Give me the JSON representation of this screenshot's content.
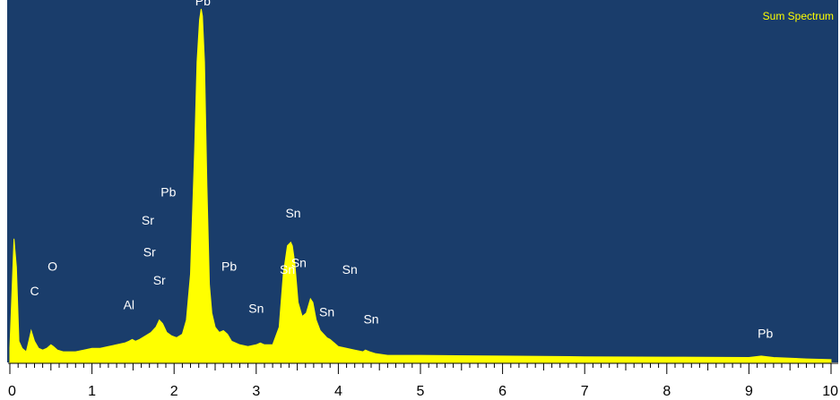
{
  "chart_data": {
    "type": "area",
    "title": "Sum Spectrum",
    "xlabel": "",
    "ylabel": "",
    "xlim": [
      0,
      10
    ],
    "ylim": [
      0,
      1
    ],
    "x_ticks": [
      "0",
      "1",
      "2",
      "3",
      "4",
      "5",
      "6",
      "7",
      "8",
      "9",
      "10"
    ],
    "grid": false,
    "colors": {
      "background": "#1a3d6b",
      "spectrum": "#ffff00",
      "peak_label": "#ffffff",
      "title": "#ffff00",
      "axis": "#000000"
    },
    "series": [
      {
        "x": [
          0.0,
          0.05,
          0.08,
          0.11,
          0.15,
          0.2,
          0.22,
          0.26,
          0.3,
          0.35,
          0.4,
          0.45,
          0.5,
          0.53,
          0.58,
          0.65,
          0.7,
          0.8,
          0.9,
          1.0,
          1.1,
          1.2,
          1.3,
          1.4,
          1.45,
          1.49,
          1.53,
          1.58,
          1.65,
          1.72,
          1.78,
          1.82,
          1.86,
          1.91,
          1.97,
          2.03,
          2.1,
          2.15,
          2.2,
          2.25,
          2.28,
          2.31,
          2.33,
          2.345,
          2.37,
          2.4,
          2.43,
          2.46,
          2.5,
          2.55,
          2.6,
          2.65,
          2.7,
          2.8,
          2.9,
          3.0,
          3.05,
          3.1,
          3.2,
          3.28,
          3.33,
          3.38,
          3.42,
          3.44,
          3.47,
          3.51,
          3.56,
          3.61,
          3.66,
          3.69,
          3.73,
          3.78,
          3.82,
          3.86,
          3.9,
          3.95,
          4.0,
          4.1,
          4.2,
          4.3,
          4.33,
          4.38,
          4.45,
          4.6,
          5.0,
          6.0,
          7.0,
          8.0,
          9.0,
          9.15,
          9.3,
          9.7,
          10.0
        ],
        "y": [
          0.04,
          0.35,
          0.27,
          0.06,
          0.04,
          0.03,
          0.05,
          0.09,
          0.06,
          0.04,
          0.035,
          0.04,
          0.05,
          0.045,
          0.035,
          0.03,
          0.03,
          0.03,
          0.035,
          0.04,
          0.04,
          0.045,
          0.05,
          0.055,
          0.06,
          0.065,
          0.06,
          0.065,
          0.075,
          0.085,
          0.1,
          0.12,
          0.11,
          0.085,
          0.075,
          0.07,
          0.08,
          0.12,
          0.25,
          0.6,
          0.85,
          0.97,
          1.0,
          0.98,
          0.85,
          0.5,
          0.22,
          0.14,
          0.1,
          0.085,
          0.09,
          0.08,
          0.06,
          0.05,
          0.045,
          0.05,
          0.055,
          0.05,
          0.05,
          0.1,
          0.25,
          0.33,
          0.34,
          0.33,
          0.28,
          0.17,
          0.13,
          0.14,
          0.18,
          0.17,
          0.12,
          0.09,
          0.08,
          0.07,
          0.065,
          0.055,
          0.045,
          0.04,
          0.035,
          0.03,
          0.035,
          0.03,
          0.025,
          0.02,
          0.02,
          0.018,
          0.016,
          0.015,
          0.014,
          0.018,
          0.014,
          0.01,
          0.008
        ]
      }
    ],
    "peak_labels": [
      {
        "text": "C",
        "x": 0.3,
        "y": 0.18
      },
      {
        "text": "O",
        "x": 0.52,
        "y": 0.25
      },
      {
        "text": "Al",
        "x": 1.45,
        "y": 0.14
      },
      {
        "text": "Sr",
        "x": 1.82,
        "y": 0.21
      },
      {
        "text": "Sr",
        "x": 1.7,
        "y": 0.29
      },
      {
        "text": "Sr",
        "x": 1.68,
        "y": 0.38
      },
      {
        "text": "Pb",
        "x": 1.93,
        "y": 0.46
      },
      {
        "text": "Pb",
        "x": 2.35,
        "y": 1.0
      },
      {
        "text": "Pb",
        "x": 2.67,
        "y": 0.25
      },
      {
        "text": "Sn",
        "x": 3.0,
        "y": 0.13
      },
      {
        "text": "Sn",
        "x": 3.38,
        "y": 0.24
      },
      {
        "text": "Sn",
        "x": 3.52,
        "y": 0.26
      },
      {
        "text": "Sn",
        "x": 3.45,
        "y": 0.4
      },
      {
        "text": "Sn",
        "x": 3.86,
        "y": 0.12
      },
      {
        "text": "Sn",
        "x": 4.14,
        "y": 0.24
      },
      {
        "text": "Sn",
        "x": 4.4,
        "y": 0.1
      },
      {
        "text": "Pb",
        "x": 9.2,
        "y": 0.06
      }
    ]
  }
}
